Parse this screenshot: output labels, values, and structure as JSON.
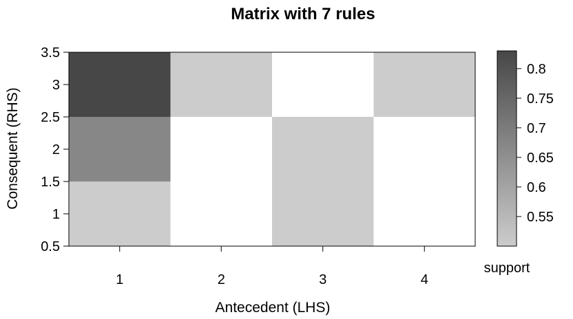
{
  "chart_data": {
    "type": "heatmap",
    "title": "Matrix with 7 rules",
    "xlabel": "Antecedent (LHS)",
    "ylabel": "Consequent (RHS)",
    "x_ticks": [
      1,
      2,
      3,
      4
    ],
    "y_ticks": [
      0.5,
      1,
      1.5,
      2,
      2.5,
      3,
      3.5
    ],
    "xlim": [
      0.5,
      4.5
    ],
    "ylim": [
      0.5,
      3.5
    ],
    "cells": [
      {
        "x": 1,
        "y": 3,
        "support": 0.83
      },
      {
        "x": 2,
        "y": 3,
        "support": 0.5
      },
      {
        "x": 4,
        "y": 3,
        "support": 0.5
      },
      {
        "x": 1,
        "y": 2,
        "support": 0.67
      },
      {
        "x": 3,
        "y": 2,
        "support": 0.5
      },
      {
        "x": 1,
        "y": 1,
        "support": 0.5
      },
      {
        "x": 3,
        "y": 1,
        "support": 0.5
      }
    ],
    "legend": {
      "title": "support",
      "range": [
        0.5,
        0.83
      ],
      "ticks": [
        0.55,
        0.6,
        0.65,
        0.7,
        0.75,
        0.8
      ],
      "colors": {
        "low": "#cccccc",
        "high": "#474747"
      }
    },
    "grid": false
  }
}
